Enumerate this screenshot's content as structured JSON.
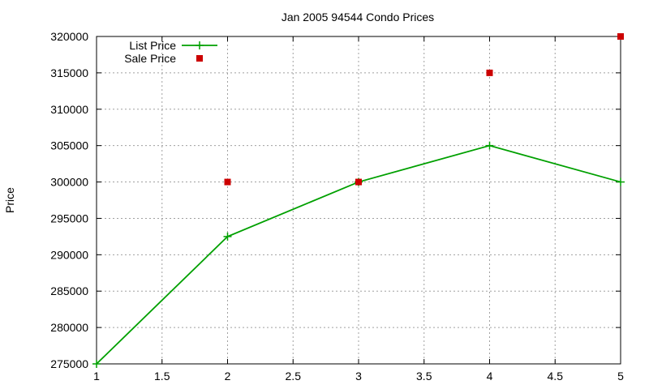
{
  "chart_data": {
    "type": "line",
    "title": "Jan 2005 94544 Condo Prices",
    "xlabel": "",
    "ylabel": "Price",
    "xlim": [
      1,
      5
    ],
    "ylim": [
      275000,
      320000
    ],
    "xticks": [
      "1",
      "1.5",
      "2",
      "2.5",
      "3",
      "3.5",
      "4",
      "4.5",
      "5"
    ],
    "yticks": [
      "275000",
      "280000",
      "285000",
      "290000",
      "295000",
      "300000",
      "305000",
      "310000",
      "315000",
      "320000"
    ],
    "grid": true,
    "legend_position": "top-left",
    "series": [
      {
        "name": "List Price",
        "style": "linespoints",
        "marker": "plus",
        "color": "#00a000",
        "x": [
          1,
          2,
          3,
          4,
          5
        ],
        "y": [
          275000,
          292500,
          300000,
          305000,
          300000
        ]
      },
      {
        "name": "Sale Price",
        "style": "points",
        "marker": "square",
        "color": "#cc0000",
        "x": [
          2,
          3,
          4,
          5
        ],
        "y": [
          300000,
          300000,
          315000,
          320000
        ]
      }
    ]
  }
}
